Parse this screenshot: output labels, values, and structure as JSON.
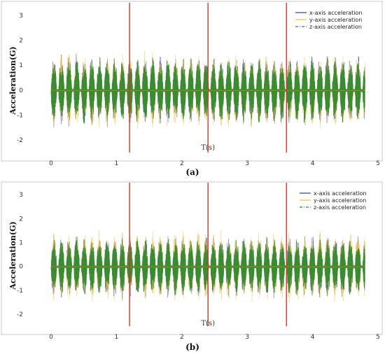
{
  "chart_data": [
    {
      "id": "a",
      "type": "line",
      "caption": "(a)",
      "xlabel": "T(s)",
      "ylabel": "Acceleration(G)",
      "xlim": [
        -0.3,
        5.0
      ],
      "ylim": [
        -2.6,
        3.4
      ],
      "xticks": [
        "0",
        "1",
        "2",
        "3",
        "4",
        "5"
      ],
      "yticks": [
        "-2",
        "-1",
        "0",
        "1",
        "2",
        "3"
      ],
      "vlines_x": [
        1.2,
        2.4,
        3.6
      ],
      "vline_color": "#e03030",
      "legend_position": "top-right",
      "signal_t_range": [
        0,
        4.8
      ],
      "series": [
        {
          "name": "x-axis acceleration",
          "color": "#2b3fb0",
          "style": "solid",
          "amplitude": 1.5
        },
        {
          "name": "y-axis acceleration",
          "color": "#f0c040",
          "style": "solid",
          "amplitude": 1.6
        },
        {
          "name": "z-axis acceleration",
          "color": "#2e8b2e",
          "style": "dashdot",
          "amplitude": 1.4
        }
      ]
    },
    {
      "id": "b",
      "type": "line",
      "caption": "(b)",
      "xlabel": "T(s)",
      "ylabel": "Acceleration(G)",
      "xlim": [
        -0.3,
        5.0
      ],
      "ylim": [
        -2.6,
        3.4
      ],
      "xticks": [
        "0",
        "1",
        "2",
        "3",
        "4",
        "5"
      ],
      "yticks": [
        "-2",
        "-1",
        "0",
        "1",
        "2",
        "3"
      ],
      "vlines_x": [
        1.2,
        2.4,
        3.6
      ],
      "vline_color": "#e03030",
      "legend_position": "top-right",
      "signal_t_range": [
        0,
        4.8
      ],
      "series": [
        {
          "name": "x-axis acceleration",
          "color": "#2b3fb0",
          "style": "solid",
          "amplitude": 1.4
        },
        {
          "name": "y-axis acceleration",
          "color": "#f0c040",
          "style": "solid",
          "amplitude": 1.6
        },
        {
          "name": "z-axis acceleration",
          "color": "#2e8b2e",
          "style": "dashdot",
          "amplitude": 1.3
        }
      ]
    }
  ]
}
